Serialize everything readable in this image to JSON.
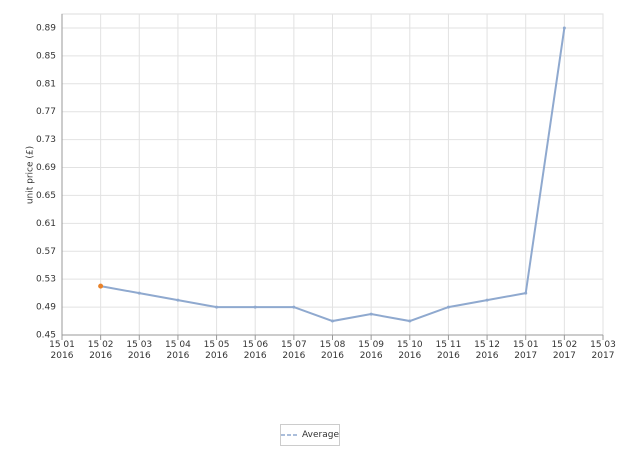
{
  "chart_data": {
    "type": "line",
    "y_label": "unit price (£)",
    "categories": [
      "15 01 2016",
      "15 02 2016",
      "15 03 2016",
      "15 04 2016",
      "15 05 2016",
      "15 06 2016",
      "15 07 2016",
      "15 08 2016",
      "15 09 2016",
      "15 10 2016",
      "15 11 2016",
      "15 12 2016",
      "15 01 2017",
      "15 02 2017",
      "15 03 2017"
    ],
    "series": [
      {
        "name": "Average",
        "color": "#8fa9cf",
        "highlight_color": "#e8822a",
        "values": [
          null,
          0.52,
          0.51,
          0.5,
          0.49,
          0.49,
          0.49,
          0.47,
          0.48,
          0.47,
          0.49,
          0.5,
          0.51,
          0.89,
          null
        ]
      }
    ],
    "ylim": [
      0.45,
      0.91
    ],
    "yticks": [
      0.45,
      0.49,
      0.53,
      0.57,
      0.61,
      0.65,
      0.69,
      0.73,
      0.77,
      0.81,
      0.85,
      0.89
    ],
    "grid": true,
    "legend": "bottom"
  }
}
